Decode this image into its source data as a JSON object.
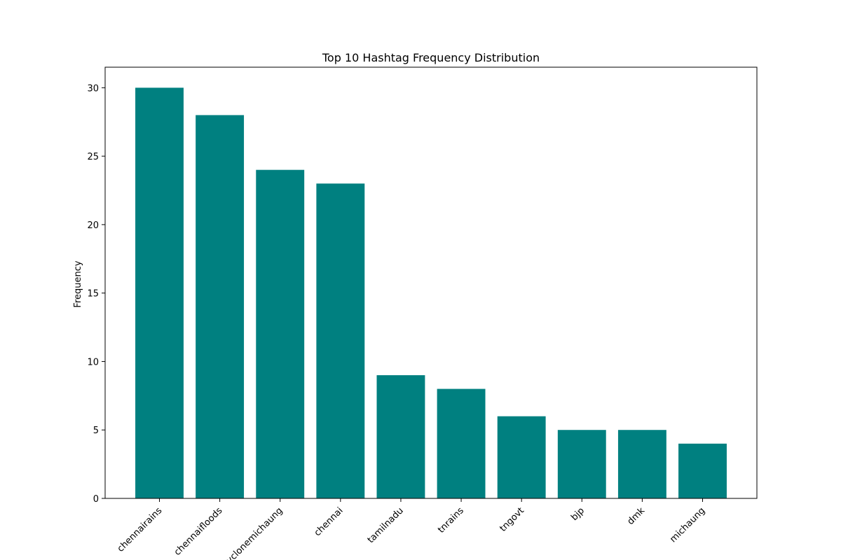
{
  "chart_data": {
    "type": "bar",
    "title": "Top 10 Hashtag Frequency Distribution",
    "xlabel": "",
    "ylabel": "Frequency",
    "categories": [
      "chennairains",
      "chennaifloods",
      "cyclonemichaung",
      "chennai",
      "tamilnadu",
      "tnrains",
      "tngovt",
      "bjp",
      "dmk",
      "michaung"
    ],
    "values": [
      30,
      28,
      24,
      23,
      9,
      8,
      6,
      5,
      5,
      4
    ],
    "ylim": [
      0,
      31.5
    ],
    "yticks": [
      0,
      5,
      10,
      15,
      20,
      25,
      30
    ],
    "bar_color": "#008080",
    "grid": false,
    "legend": "none"
  }
}
